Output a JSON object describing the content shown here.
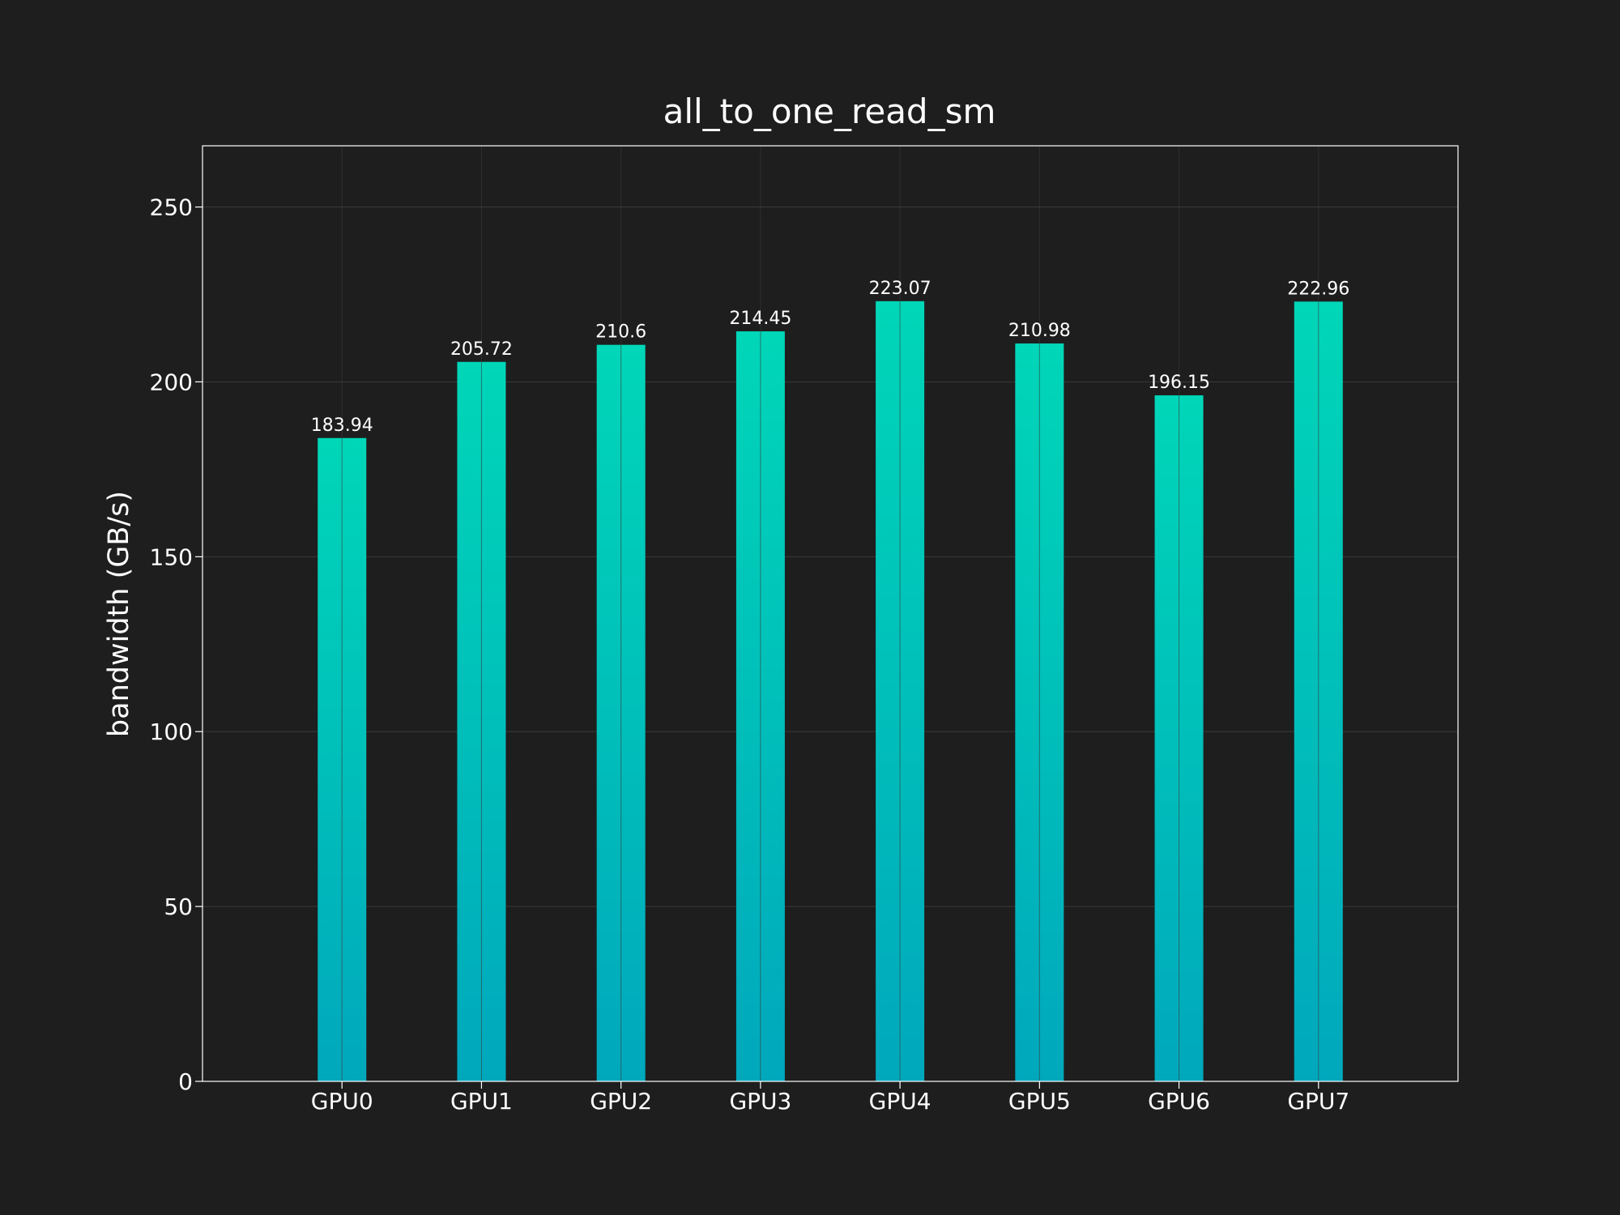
{
  "chart_data": {
    "type": "bar",
    "title": "all_to_one_read_sm",
    "xlabel": "",
    "ylabel": "bandwidth (GB/s)",
    "categories": [
      "GPU0",
      "GPU1",
      "GPU2",
      "GPU3",
      "GPU4",
      "GPU5",
      "GPU6",
      "GPU7"
    ],
    "values": [
      183.94,
      205.72,
      210.6,
      214.45,
      223.07,
      210.98,
      196.15,
      222.96
    ],
    "value_labels": [
      "183.94",
      "205.72",
      "210.6",
      "214.45",
      "223.07",
      "210.98",
      "196.15",
      "222.96"
    ],
    "ylim": [
      0,
      267.5
    ],
    "yticks": [
      0,
      50,
      100,
      150,
      200,
      250
    ],
    "xlim": [
      -1,
      8
    ],
    "grid": true,
    "legend": "none",
    "colors": {
      "background": "#1e1e1e",
      "bar_top": "#00d6b8",
      "bar_bottom": "#00a8bc",
      "text": "#ffffff",
      "grid": "#3a3a3a",
      "axis": "#ffffff"
    }
  }
}
